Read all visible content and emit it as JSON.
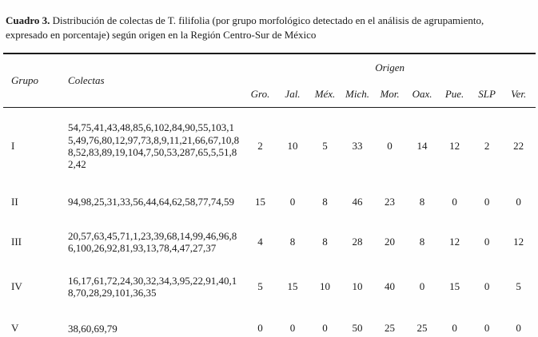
{
  "caption": {
    "label": "Cuadro 3.",
    "text": " Distribución de colectas de T. filifolia (por grupo morfológico detectado en el análisis de agrupamiento, expresado en porcentaje) según origen en la Región Centro-Sur de México"
  },
  "table": {
    "headers": {
      "grupo": "Grupo",
      "colectas": "Colectas",
      "origen": "Origen",
      "origins": [
        "Gro.",
        "Jal.",
        "Méx.",
        "Mich.",
        "Mor.",
        "Oax.",
        "Pue.",
        "SLP",
        "Ver."
      ]
    },
    "rows": [
      {
        "grupo": "I",
        "colectas": "54,75,41,43,48,85,6,102,84,90,55,103,15,49,76,80,12,97,73,8,9,11,21,66,67,10,88,52,83,89,19,104,7,50,53,287,65,5,51,82,42",
        "values": [
          2,
          10,
          5,
          33,
          0,
          14,
          12,
          2,
          22
        ]
      },
      {
        "grupo": "II",
        "colectas": "94,98,25,31,33,56,44,64,62,58,77,74,59",
        "values": [
          15,
          0,
          8,
          46,
          23,
          8,
          0,
          0,
          0
        ]
      },
      {
        "grupo": "III",
        "colectas": "20,57,63,45,71,1,23,39,68,14,99,46,96,86,100,26,92,81,93,13,78,4,47,27,37",
        "values": [
          4,
          8,
          8,
          28,
          20,
          8,
          12,
          0,
          12
        ]
      },
      {
        "grupo": "IV",
        "colectas": "16,17,61,72,24,30,32,34,3,95,22,91,40,18,70,28,29,101,36,35",
        "values": [
          5,
          15,
          10,
          10,
          40,
          0,
          15,
          0,
          5
        ]
      },
      {
        "grupo": "V",
        "colectas": "38,60,69,79",
        "values": [
          0,
          0,
          0,
          50,
          25,
          25,
          0,
          0,
          0
        ]
      }
    ]
  }
}
